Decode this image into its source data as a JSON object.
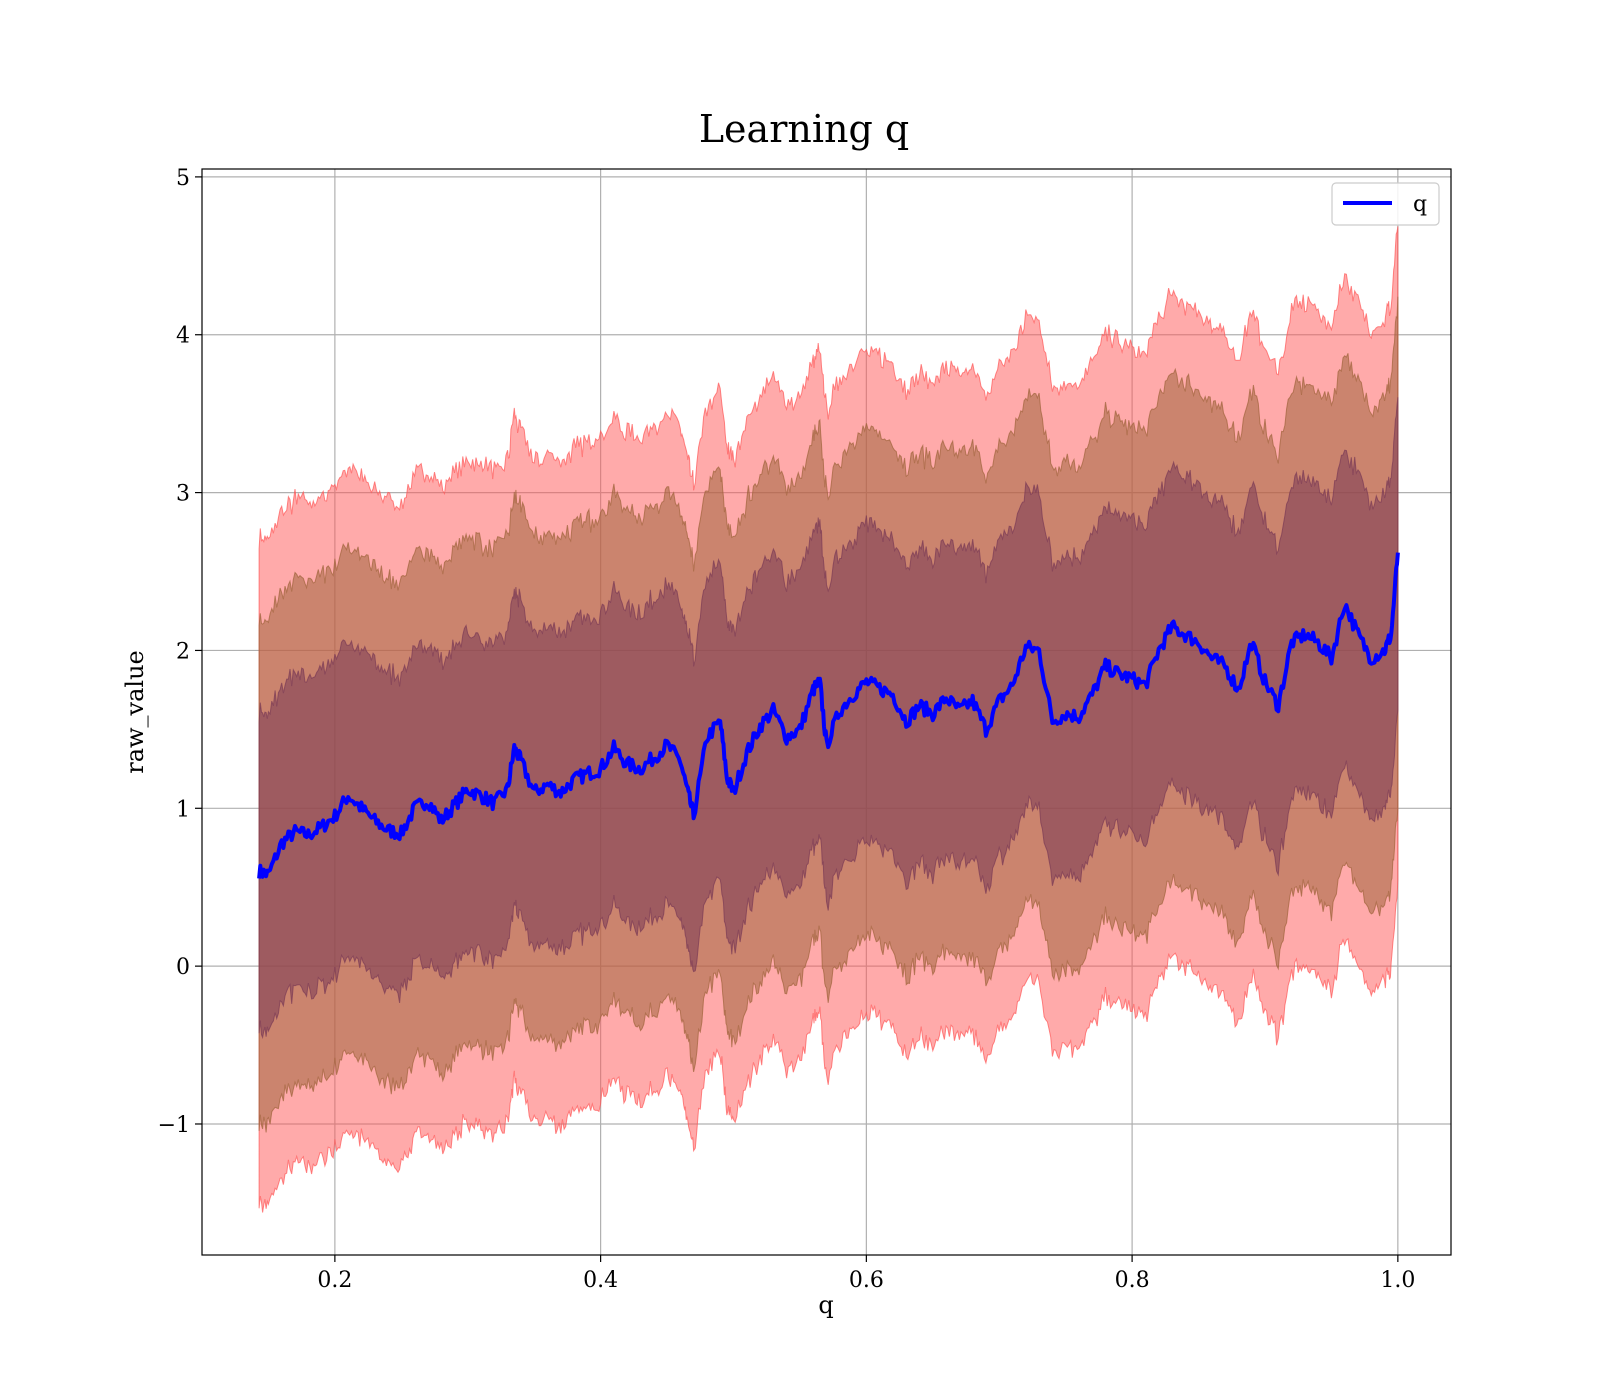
{
  "chart_data": {
    "type": "area",
    "title": "Learning q",
    "xlabel": "q",
    "ylabel": "raw_value",
    "xlim": [
      0.1,
      1.04
    ],
    "ylim": [
      -1.83,
      5.05
    ],
    "xticks": [
      0.2,
      0.4,
      0.6,
      0.8,
      1.0
    ],
    "xtick_labels": [
      "0.2",
      "0.4",
      "0.6",
      "0.8",
      "1.0"
    ],
    "yticks": [
      -1,
      0,
      1,
      2,
      3,
      4,
      5
    ],
    "ytick_labels": [
      "−1",
      "0",
      "1",
      "2",
      "3",
      "4",
      "5"
    ],
    "grid": true,
    "legend": {
      "position": "top-right",
      "entries": [
        "q"
      ]
    },
    "band_widths": [
      1.0,
      1.6,
      2.1
    ],
    "band_colors": [
      "#7a3a55",
      "#a0643c",
      "#ff5555"
    ],
    "series": [
      {
        "name": "q",
        "color": "#0000ff",
        "x": [
          0.143,
          0.15,
          0.16,
          0.17,
          0.18,
          0.19,
          0.2,
          0.21,
          0.22,
          0.23,
          0.24,
          0.25,
          0.26,
          0.27,
          0.28,
          0.29,
          0.3,
          0.31,
          0.32,
          0.33,
          0.335,
          0.34,
          0.35,
          0.36,
          0.37,
          0.38,
          0.39,
          0.4,
          0.41,
          0.42,
          0.43,
          0.44,
          0.45,
          0.46,
          0.465,
          0.47,
          0.48,
          0.49,
          0.495,
          0.5,
          0.51,
          0.52,
          0.53,
          0.54,
          0.55,
          0.56,
          0.565,
          0.57,
          0.58,
          0.59,
          0.6,
          0.61,
          0.62,
          0.63,
          0.64,
          0.65,
          0.66,
          0.67,
          0.68,
          0.69,
          0.7,
          0.71,
          0.72,
          0.73,
          0.74,
          0.75,
          0.76,
          0.77,
          0.78,
          0.79,
          0.8,
          0.81,
          0.82,
          0.83,
          0.84,
          0.85,
          0.86,
          0.87,
          0.88,
          0.89,
          0.9,
          0.91,
          0.92,
          0.93,
          0.94,
          0.95,
          0.96,
          0.97,
          0.98,
          0.99,
          0.995,
          1.0
        ],
        "y": [
          0.6,
          0.58,
          0.78,
          0.85,
          0.83,
          0.88,
          0.95,
          1.08,
          1.0,
          0.92,
          0.86,
          0.84,
          1.0,
          1.05,
          0.92,
          1.02,
          1.12,
          1.08,
          1.03,
          1.12,
          1.38,
          1.3,
          1.1,
          1.15,
          1.1,
          1.18,
          1.22,
          1.25,
          1.38,
          1.28,
          1.25,
          1.32,
          1.4,
          1.3,
          1.12,
          0.95,
          1.45,
          1.55,
          1.2,
          1.1,
          1.35,
          1.52,
          1.62,
          1.45,
          1.5,
          1.75,
          1.8,
          1.4,
          1.62,
          1.72,
          1.8,
          1.76,
          1.72,
          1.55,
          1.65,
          1.6,
          1.7,
          1.62,
          1.68,
          1.5,
          1.68,
          1.78,
          2.02,
          2.0,
          1.55,
          1.6,
          1.58,
          1.72,
          1.9,
          1.85,
          1.82,
          1.78,
          2.0,
          2.15,
          2.1,
          2.05,
          1.95,
          1.9,
          1.75,
          2.05,
          1.8,
          1.65,
          2.05,
          2.1,
          2.05,
          1.95,
          2.3,
          2.1,
          1.95,
          2.0,
          2.1,
          2.62
        ]
      }
    ]
  }
}
